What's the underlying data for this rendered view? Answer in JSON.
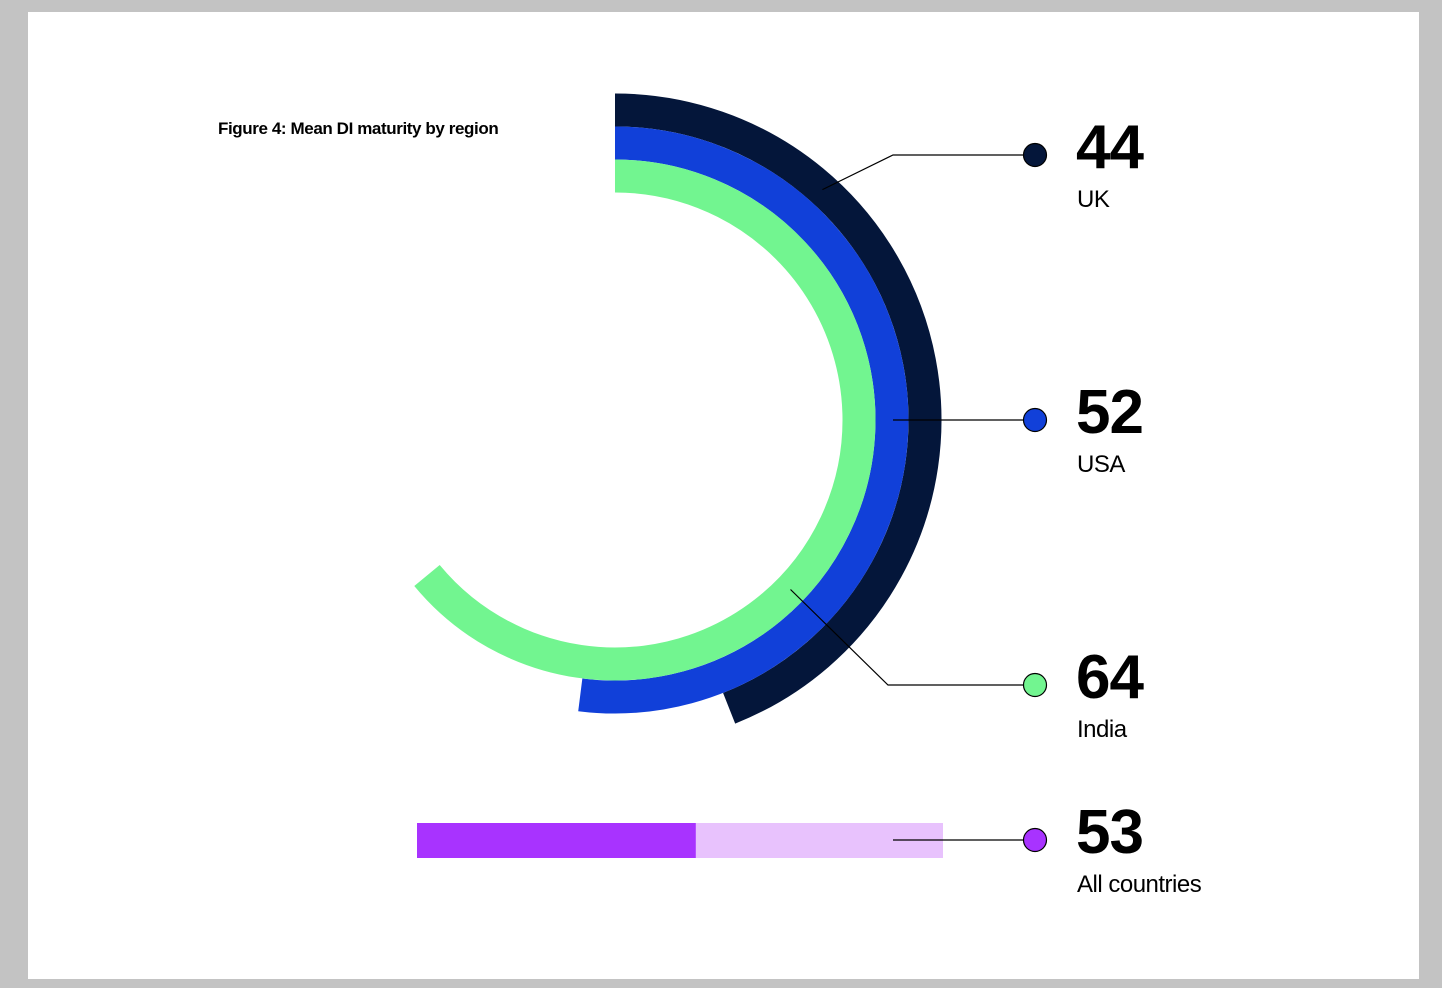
{
  "chart_data": {
    "type": "radial-bar",
    "title": "Figure 4: Mean DI maturity by region",
    "scale_max": 100,
    "series": [
      {
        "name": "UK",
        "value": 44,
        "color": "#04163a"
      },
      {
        "name": "USA",
        "value": 52,
        "color": "#1140d9"
      },
      {
        "name": "India",
        "value": 64,
        "color": "#72f590"
      }
    ],
    "summary": {
      "name": "All countries",
      "value": 53,
      "color": "#a833ff",
      "track_color": "#e8c2fd"
    }
  }
}
